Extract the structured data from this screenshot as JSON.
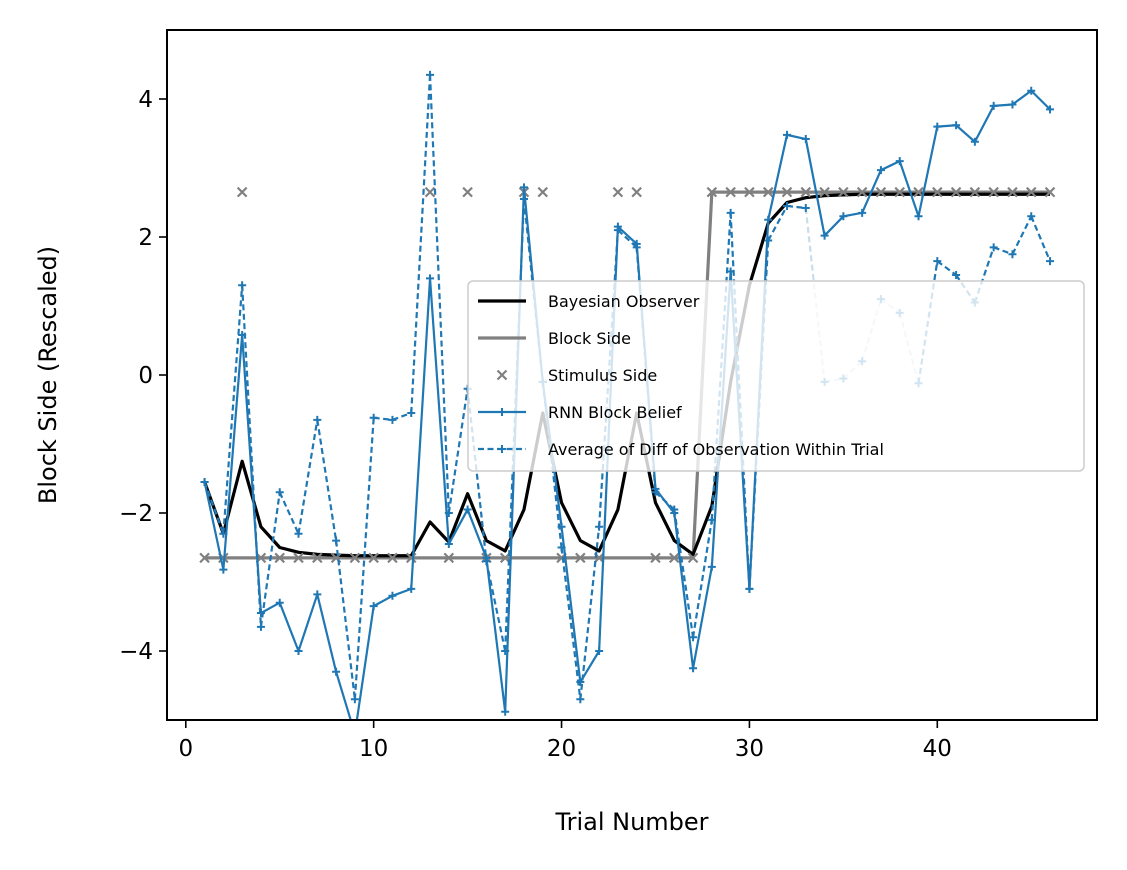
{
  "chart_data": {
    "type": "line",
    "xlabel": "Trial Number",
    "ylabel": "Block Side (Rescaled)",
    "xlim": [
      -1,
      48.5
    ],
    "ylim": [
      -5,
      5
    ],
    "xticks": [
      0,
      10,
      20,
      30,
      40
    ],
    "yticks": [
      -4,
      -2,
      0,
      2,
      4
    ],
    "xtick_labels": [
      "0",
      "10",
      "20",
      "30",
      "40"
    ],
    "ytick_labels": [
      "−4",
      "−2",
      "0",
      "2",
      "4"
    ],
    "grid": false,
    "legend_position": "center-right",
    "x": [
      1,
      2,
      3,
      4,
      5,
      6,
      7,
      8,
      9,
      10,
      11,
      12,
      13,
      14,
      15,
      16,
      17,
      18,
      19,
      20,
      21,
      22,
      23,
      24,
      25,
      26,
      27,
      28,
      29,
      30,
      31,
      32,
      33,
      34,
      35,
      36,
      37,
      38,
      39,
      40,
      41,
      42,
      43,
      44,
      45,
      46
    ],
    "series": [
      {
        "name": "Bayesian Observer",
        "color": "#000000",
        "style": "solid",
        "marker": "none",
        "values": [
          -1.55,
          -2.3,
          -1.25,
          -2.2,
          -2.5,
          -2.57,
          -2.6,
          -2.61,
          -2.62,
          -2.62,
          -2.62,
          -2.62,
          -2.13,
          -2.42,
          -1.72,
          -2.4,
          -2.55,
          -1.95,
          -0.55,
          -1.85,
          -2.4,
          -2.55,
          -1.95,
          -0.55,
          -1.85,
          -2.4,
          -2.6,
          -1.9,
          -0.1,
          1.3,
          2.2,
          2.5,
          2.57,
          2.6,
          2.61,
          2.62,
          2.62,
          2.62,
          2.62,
          2.62,
          2.62,
          2.62,
          2.62,
          2.62,
          2.62,
          2.62
        ]
      },
      {
        "name": "Block Side",
        "color": "#808080",
        "style": "solid",
        "marker": "none",
        "x": [
          1,
          27,
          28,
          46
        ],
        "values": [
          -2.65,
          -2.65,
          2.65,
          2.65
        ]
      },
      {
        "name": "Stimulus Side",
        "color": "#808080",
        "style": "none",
        "marker": "x",
        "values": [
          -2.65,
          -2.65,
          2.65,
          -2.65,
          -2.65,
          -2.65,
          -2.65,
          -2.65,
          -2.65,
          -2.65,
          -2.65,
          -2.65,
          2.65,
          -2.65,
          2.65,
          -2.65,
          -2.65,
          2.65,
          2.65,
          -2.65,
          -2.65,
          -2.65,
          2.65,
          2.65,
          -2.65,
          -2.65,
          -2.65,
          2.65,
          2.65,
          2.65,
          2.65,
          2.65,
          2.65,
          2.65,
          2.65,
          2.65,
          2.65,
          2.65,
          2.65,
          2.65,
          2.65,
          2.65,
          2.65,
          2.65,
          2.65,
          2.65
        ]
      },
      {
        "name": "RNN Block Belief",
        "color": "#1f77b4",
        "style": "solid",
        "marker": "+",
        "values": [
          -1.55,
          -2.82,
          0.58,
          -3.45,
          -3.3,
          -4.0,
          -3.18,
          -4.3,
          -5.2,
          -3.35,
          -3.2,
          -3.1,
          1.4,
          -2.45,
          -1.95,
          -2.65,
          -4.88,
          2.72,
          -0.1,
          -2.2,
          -4.45,
          -4.0,
          2.15,
          1.9,
          -1.65,
          -2.0,
          -4.25,
          -2.78,
          1.5,
          -3.1,
          2.25,
          3.48,
          3.42,
          2.02,
          2.3,
          2.35,
          2.97,
          3.1,
          2.3,
          3.6,
          3.62,
          3.38,
          3.9,
          3.92,
          4.12,
          3.85
        ]
      },
      {
        "name": "Average of Diff of Observation Within Trial",
        "color": "#1f77b4",
        "style": "dashed",
        "marker": "+",
        "values": [
          -1.55,
          -2.3,
          1.3,
          -3.65,
          -1.7,
          -2.3,
          -0.65,
          -2.4,
          -4.7,
          -0.62,
          -0.65,
          -0.55,
          4.35,
          -2.0,
          -0.2,
          -2.7,
          -4.0,
          2.55,
          -0.1,
          -2.5,
          -4.7,
          -2.2,
          2.1,
          1.85,
          -1.7,
          -1.95,
          -3.8,
          -2.1,
          2.35,
          -3.1,
          1.95,
          2.45,
          2.42,
          -0.1,
          -0.05,
          0.2,
          1.1,
          0.9,
          -0.12,
          1.65,
          1.45,
          1.05,
          1.85,
          1.75,
          2.3,
          1.65
        ],
        "faded_segments_after_trial": 33,
        "faded_segments_until_trial": 39
      }
    ]
  }
}
